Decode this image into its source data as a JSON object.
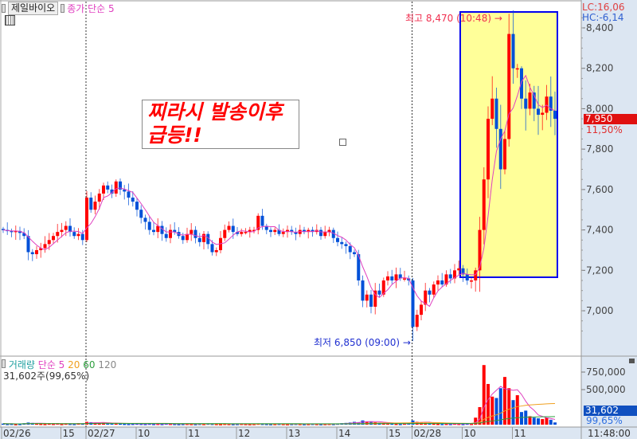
{
  "header": {
    "title": "제일바이오",
    "ma_label": "종가 단순 5"
  },
  "annotation": {
    "line1": "찌라시 발송이후",
    "line2": "급등!!"
  },
  "markers": {
    "high": "최고 8,470 (10:48)",
    "low": "최저 6,850 (09:00)"
  },
  "right_axis": {
    "lc": "LC:16,06",
    "hc": "HC:-6,14",
    "current_price": "7,950",
    "change_pct": "11,50%",
    "current_volume": "31,602",
    "volume_pct": "99,65%"
  },
  "volume_panel": {
    "title": "거래량",
    "ma5": "단순 5",
    "ma20": "20",
    "ma60": "60",
    "ma120": "120",
    "info": "31,602주(99,65%)"
  },
  "time_axis": {
    "clock": "11:48:00"
  },
  "colors": {
    "up": "#ff0000",
    "down": "#0050d8",
    "ma5": "#e040c0",
    "ma20": "#f0a020",
    "ma60": "#30a040",
    "highlight_fill": "#ffff99",
    "highlight_border": "#0000ee",
    "axis_bg": "#dce6f2"
  },
  "chart_data": {
    "type": "candlestick",
    "interval": "5min",
    "price_ticks": [
      "7,000",
      "7,200",
      "7,400",
      "7,600",
      "7,800",
      "8,000",
      "8,200",
      "8,400"
    ],
    "price_tick_values": [
      7000,
      7200,
      7400,
      7600,
      7800,
      8000,
      8200,
      8400
    ],
    "volume_ticks": [
      "750,000",
      "500,000"
    ],
    "volume_tick_values": [
      750000,
      500000
    ],
    "x_labels": [
      {
        "label": "02/26",
        "bar": 0
      },
      {
        "label": "15",
        "bar": 14
      },
      {
        "label": "02/27",
        "bar": 20
      },
      {
        "label": "10",
        "bar": 32
      },
      {
        "label": "11",
        "bar": 44
      },
      {
        "label": "12",
        "bar": 56
      },
      {
        "label": "13",
        "bar": 68
      },
      {
        "label": "14",
        "bar": 80
      },
      {
        "label": "15",
        "bar": 92
      },
      {
        "label": "02/28",
        "bar": 98
      },
      {
        "label": "10",
        "bar": 110
      },
      {
        "label": "11",
        "bar": 122
      }
    ],
    "day_separators": [
      20,
      98
    ],
    "high": 8470,
    "low": 6850,
    "close": [
      7400,
      7395,
      7390,
      7395,
      7385,
      7370,
      7290,
      7280,
      7300,
      7310,
      7330,
      7350,
      7370,
      7390,
      7400,
      7420,
      7390,
      7370,
      7380,
      7350,
      7560,
      7500,
      7540,
      7580,
      7620,
      7600,
      7580,
      7640,
      7600,
      7590,
      7560,
      7540,
      7500,
      7460,
      7440,
      7400,
      7390,
      7420,
      7380,
      7360,
      7400,
      7390,
      7370,
      7350,
      7380,
      7400,
      7360,
      7340,
      7380,
      7330,
      7290,
      7300,
      7360,
      7400,
      7420,
      7390,
      7380,
      7390,
      7390,
      7400,
      7400,
      7470,
      7420,
      7400,
      7390,
      7400,
      7380,
      7390,
      7400,
      7390,
      7380,
      7400,
      7390,
      7400,
      7390,
      7400,
      7370,
      7390,
      7400,
      7360,
      7340,
      7330,
      7320,
      7290,
      7280,
      7150,
      7050,
      7080,
      7020,
      7100,
      7080,
      7150,
      7170,
      7150,
      7180,
      7160,
      7160,
      7150,
      6920,
      6980,
      7030,
      7100,
      7080,
      7130,
      7150,
      7130,
      7180,
      7160,
      7200,
      7210,
      7180,
      7150,
      7150,
      7200,
      7400,
      7650,
      7950,
      8050,
      7900,
      7700,
      7850,
      8370,
      8200,
      8200,
      8050,
      8000,
      8080,
      8000,
      7970,
      7980,
      8060,
      7990,
      7950
    ],
    "volume": [
      15000,
      10000,
      12000,
      8000,
      10000,
      20000,
      30000,
      25000,
      15000,
      12000,
      10000,
      15000,
      12000,
      18000,
      10000,
      15000,
      12000,
      10000,
      20000,
      15000,
      40000,
      35000,
      30000,
      25000,
      28000,
      20000,
      18000,
      22000,
      15000,
      12000,
      10000,
      12000,
      15000,
      12000,
      10000,
      14000,
      10000,
      12000,
      10000,
      15000,
      12000,
      10000,
      8000,
      10000,
      12000,
      10000,
      8000,
      12000,
      10000,
      15000,
      12000,
      10000,
      8000,
      12000,
      10000,
      8000,
      10000,
      12000,
      10000,
      8000,
      10000,
      15000,
      12000,
      10000,
      8000,
      10000,
      12000,
      10000,
      8000,
      10000,
      12000,
      10000,
      8000,
      10000,
      12000,
      10000,
      8000,
      10000,
      12000,
      10000,
      15000,
      20000,
      25000,
      30000,
      40000,
      35000,
      60000,
      45000,
      40000,
      35000,
      30000,
      25000,
      20000,
      15000,
      12000,
      10000,
      15000,
      20000,
      60000,
      40000,
      30000,
      25000,
      20000,
      15000,
      12000,
      10000,
      12000,
      10000,
      15000,
      12000,
      10000,
      15000,
      12000,
      100000,
      250000,
      850000,
      580000,
      400000,
      380000,
      520000,
      680000,
      520000,
      350000,
      420000,
      180000,
      200000,
      120000,
      100000,
      90000,
      80000,
      100000,
      70000,
      31602
    ]
  }
}
